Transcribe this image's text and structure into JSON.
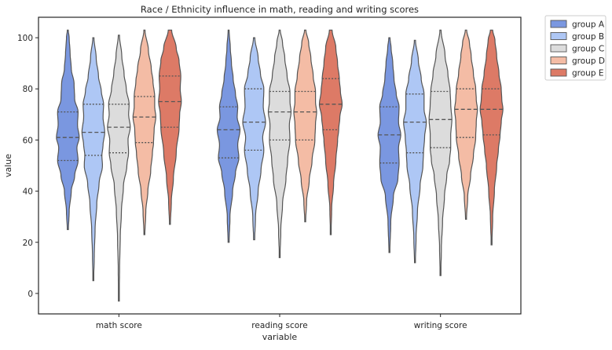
{
  "chart_data": {
    "type": "violin",
    "title": "Race / Ethnicity influence in math, reading and writing scores",
    "xlabel": "variable",
    "ylabel": "value",
    "ylim": [
      -8,
      108
    ],
    "yticks": [
      0,
      20,
      40,
      60,
      80,
      100
    ],
    "categories": [
      "math score",
      "reading score",
      "writing score"
    ],
    "legend_position": "outside-top-right",
    "series": [
      {
        "name": "group A",
        "color": "#7a97e0",
        "violins": [
          {
            "min": 25,
            "max": 103,
            "q1": 52,
            "median": 61,
            "q3": 71,
            "profile": [
              [
                25,
                0.05
              ],
              [
                32,
                0.12
              ],
              [
                40,
                0.3
              ],
              [
                46,
                0.6
              ],
              [
                52,
                0.9
              ],
              [
                57,
                0.8
              ],
              [
                61,
                1.0
              ],
              [
                66,
                0.85
              ],
              [
                71,
                0.9
              ],
              [
                76,
                0.6
              ],
              [
                82,
                0.55
              ],
              [
                88,
                0.3
              ],
              [
                94,
                0.2
              ],
              [
                100,
                0.12
              ],
              [
                103,
                0.04
              ]
            ]
          },
          {
            "min": 20,
            "max": 103,
            "q1": 53,
            "median": 64,
            "q3": 73,
            "profile": [
              [
                20,
                0.05
              ],
              [
                30,
                0.12
              ],
              [
                40,
                0.35
              ],
              [
                47,
                0.6
              ],
              [
                53,
                0.9
              ],
              [
                58,
                0.8
              ],
              [
                64,
                1.0
              ],
              [
                69,
                0.75
              ],
              [
                73,
                0.8
              ],
              [
                78,
                0.6
              ],
              [
                84,
                0.4
              ],
              [
                90,
                0.25
              ],
              [
                96,
                0.15
              ],
              [
                103,
                0.04
              ]
            ]
          },
          {
            "min": 16,
            "max": 100,
            "q1": 51,
            "median": 62,
            "q3": 73,
            "profile": [
              [
                16,
                0.04
              ],
              [
                28,
                0.12
              ],
              [
                38,
                0.35
              ],
              [
                45,
                0.75
              ],
              [
                51,
                0.85
              ],
              [
                57,
                0.8
              ],
              [
                62,
                1.0
              ],
              [
                67,
                0.8
              ],
              [
                73,
                0.85
              ],
              [
                78,
                0.6
              ],
              [
                84,
                0.4
              ],
              [
                90,
                0.3
              ],
              [
                96,
                0.15
              ],
              [
                100,
                0.05
              ]
            ]
          }
        ]
      },
      {
        "name": "group B",
        "color": "#aec7f5",
        "violins": [
          {
            "min": 5,
            "max": 100,
            "q1": 54,
            "median": 63,
            "q3": 74,
            "profile": [
              [
                5,
                0.03
              ],
              [
                15,
                0.08
              ],
              [
                25,
                0.15
              ],
              [
                35,
                0.3
              ],
              [
                43,
                0.5
              ],
              [
                50,
                0.8
              ],
              [
                54,
                0.75
              ],
              [
                58,
                0.85
              ],
              [
                63,
                1.0
              ],
              [
                69,
                0.85
              ],
              [
                74,
                0.9
              ],
              [
                79,
                0.7
              ],
              [
                85,
                0.45
              ],
              [
                92,
                0.25
              ],
              [
                100,
                0.05
              ]
            ]
          },
          {
            "min": 21,
            "max": 100,
            "q1": 56,
            "median": 67,
            "q3": 80,
            "profile": [
              [
                21,
                0.05
              ],
              [
                30,
                0.12
              ],
              [
                40,
                0.35
              ],
              [
                48,
                0.6
              ],
              [
                56,
                0.85
              ],
              [
                61,
                0.75
              ],
              [
                67,
                1.0
              ],
              [
                73,
                0.8
              ],
              [
                80,
                0.85
              ],
              [
                86,
                0.55
              ],
              [
                92,
                0.35
              ],
              [
                100,
                0.06
              ]
            ]
          },
          {
            "min": 12,
            "max": 99,
            "q1": 55,
            "median": 67,
            "q3": 78,
            "profile": [
              [
                12,
                0.04
              ],
              [
                22,
                0.1
              ],
              [
                32,
                0.22
              ],
              [
                42,
                0.45
              ],
              [
                50,
                0.7
              ],
              [
                55,
                0.75
              ],
              [
                61,
                0.85
              ],
              [
                67,
                1.0
              ],
              [
                72,
                0.8
              ],
              [
                78,
                0.8
              ],
              [
                84,
                0.55
              ],
              [
                91,
                0.3
              ],
              [
                99,
                0.05
              ]
            ]
          }
        ]
      },
      {
        "name": "group C",
        "color": "#dcdcdc",
        "violins": [
          {
            "min": -3,
            "max": 101,
            "q1": 55,
            "median": 65,
            "q3": 74,
            "profile": [
              [
                -3,
                0.02
              ],
              [
                10,
                0.06
              ],
              [
                22,
                0.12
              ],
              [
                32,
                0.22
              ],
              [
                42,
                0.4
              ],
              [
                50,
                0.7
              ],
              [
                55,
                0.85
              ],
              [
                60,
                0.8
              ],
              [
                65,
                1.0
              ],
              [
                70,
                0.85
              ],
              [
                74,
                0.9
              ],
              [
                80,
                0.65
              ],
              [
                86,
                0.45
              ],
              [
                93,
                0.25
              ],
              [
                101,
                0.05
              ]
            ]
          },
          {
            "min": 14,
            "max": 103,
            "q1": 60,
            "median": 71,
            "q3": 79,
            "profile": [
              [
                14,
                0.03
              ],
              [
                25,
                0.1
              ],
              [
                35,
                0.25
              ],
              [
                45,
                0.55
              ],
              [
                52,
                0.7
              ],
              [
                60,
                0.9
              ],
              [
                66,
                0.85
              ],
              [
                71,
                1.0
              ],
              [
                75,
                0.9
              ],
              [
                79,
                0.9
              ],
              [
                85,
                0.65
              ],
              [
                92,
                0.45
              ],
              [
                98,
                0.25
              ],
              [
                103,
                0.05
              ]
            ]
          },
          {
            "min": 7,
            "max": 103,
            "q1": 57,
            "median": 68,
            "q3": 79,
            "profile": [
              [
                7,
                0.03
              ],
              [
                18,
                0.08
              ],
              [
                28,
                0.18
              ],
              [
                38,
                0.35
              ],
              [
                46,
                0.55
              ],
              [
                52,
                0.8
              ],
              [
                57,
                0.9
              ],
              [
                62,
                0.9
              ],
              [
                68,
                1.0
              ],
              [
                74,
                0.9
              ],
              [
                79,
                0.85
              ],
              [
                86,
                0.65
              ],
              [
                93,
                0.4
              ],
              [
                103,
                0.05
              ]
            ]
          }
        ]
      },
      {
        "name": "group D",
        "color": "#f4bca5",
        "violins": [
          {
            "min": 23,
            "max": 103,
            "q1": 59,
            "median": 69,
            "q3": 77,
            "profile": [
              [
                23,
                0.04
              ],
              [
                32,
                0.12
              ],
              [
                40,
                0.3
              ],
              [
                48,
                0.55
              ],
              [
                55,
                0.7
              ],
              [
                59,
                0.8
              ],
              [
                64,
                0.85
              ],
              [
                69,
                1.0
              ],
              [
                73,
                0.9
              ],
              [
                77,
                0.9
              ],
              [
                83,
                0.75
              ],
              [
                88,
                0.6
              ],
              [
                95,
                0.35
              ],
              [
                103,
                0.05
              ]
            ]
          },
          {
            "min": 28,
            "max": 103,
            "q1": 60,
            "median": 71,
            "q3": 79,
            "profile": [
              [
                28,
                0.04
              ],
              [
                36,
                0.12
              ],
              [
                44,
                0.35
              ],
              [
                52,
                0.6
              ],
              [
                60,
                0.85
              ],
              [
                66,
                0.9
              ],
              [
                71,
                1.0
              ],
              [
                75,
                0.9
              ],
              [
                79,
                0.9
              ],
              [
                85,
                0.7
              ],
              [
                92,
                0.5
              ],
              [
                98,
                0.3
              ],
              [
                103,
                0.06
              ]
            ]
          },
          {
            "min": 29,
            "max": 103,
            "q1": 61,
            "median": 72,
            "q3": 80,
            "profile": [
              [
                29,
                0.04
              ],
              [
                38,
                0.15
              ],
              [
                46,
                0.4
              ],
              [
                54,
                0.65
              ],
              [
                61,
                0.85
              ],
              [
                67,
                0.9
              ],
              [
                72,
                1.0
              ],
              [
                76,
                0.9
              ],
              [
                80,
                0.85
              ],
              [
                86,
                0.65
              ],
              [
                93,
                0.45
              ],
              [
                98,
                0.3
              ],
              [
                103,
                0.06
              ]
            ]
          }
        ]
      },
      {
        "name": "group E",
        "color": "#dd7a66",
        "violins": [
          {
            "min": 27,
            "max": 103,
            "q1": 65,
            "median": 75,
            "q3": 85,
            "profile": [
              [
                27,
                0.04
              ],
              [
                36,
                0.12
              ],
              [
                45,
                0.3
              ],
              [
                55,
                0.55
              ],
              [
                65,
                0.8
              ],
              [
                70,
                0.85
              ],
              [
                75,
                1.0
              ],
              [
                80,
                0.9
              ],
              [
                85,
                0.95
              ],
              [
                91,
                0.8
              ],
              [
                96,
                0.55
              ],
              [
                103,
                0.15
              ]
            ]
          },
          {
            "min": 23,
            "max": 103,
            "q1": 64,
            "median": 74,
            "q3": 84,
            "profile": [
              [
                23,
                0.03
              ],
              [
                33,
                0.08
              ],
              [
                43,
                0.25
              ],
              [
                52,
                0.45
              ],
              [
                60,
                0.6
              ],
              [
                64,
                0.7
              ],
              [
                69,
                0.8
              ],
              [
                74,
                1.0
              ],
              [
                79,
                0.85
              ],
              [
                84,
                0.75
              ],
              [
                90,
                0.6
              ],
              [
                96,
                0.45
              ],
              [
                103,
                0.12
              ]
            ]
          },
          {
            "min": 19,
            "max": 103,
            "q1": 62,
            "median": 72,
            "q3": 80,
            "profile": [
              [
                19,
                0.03
              ],
              [
                30,
                0.1
              ],
              [
                40,
                0.25
              ],
              [
                50,
                0.45
              ],
              [
                56,
                0.6
              ],
              [
                62,
                0.75
              ],
              [
                67,
                0.85
              ],
              [
                72,
                1.0
              ],
              [
                76,
                0.9
              ],
              [
                80,
                0.85
              ],
              [
                86,
                0.65
              ],
              [
                93,
                0.45
              ],
              [
                99,
                0.3
              ],
              [
                103,
                0.1
              ]
            ]
          }
        ]
      }
    ]
  }
}
